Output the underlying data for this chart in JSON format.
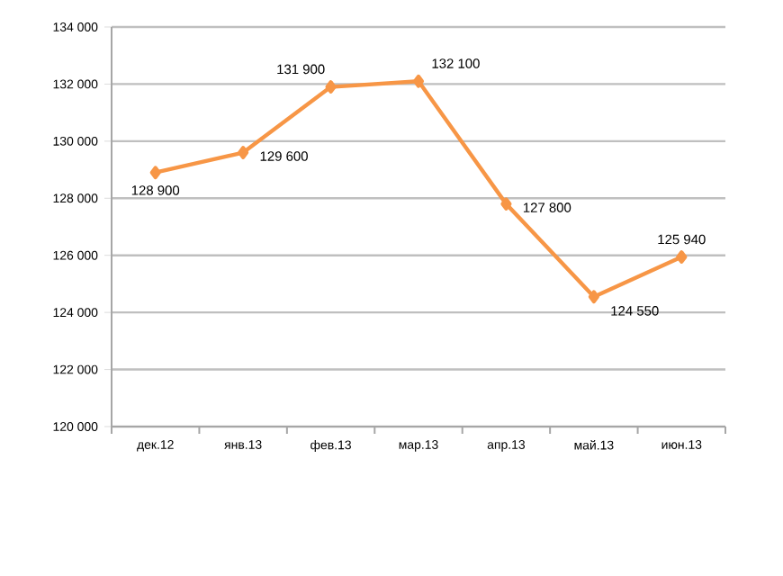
{
  "chart_data": {
    "type": "line",
    "categories": [
      "дек.12",
      "янв.13",
      "фев.13",
      "мар.13",
      "апр.13",
      "май.13",
      "июн.13"
    ],
    "values": [
      128900,
      129600,
      131900,
      132100,
      127800,
      124550,
      125940
    ],
    "value_labels": [
      "128 900",
      "129 600",
      "131 900",
      "132 100",
      "127 800",
      "124 550",
      "125 940"
    ],
    "color": "#f79646",
    "marker": "diamond",
    "line_style": "solid",
    "grid": "y",
    "ylim": [
      120000,
      134000
    ],
    "yticks": [
      {
        "value": 120000,
        "label": "120 000"
      },
      {
        "value": 122000,
        "label": "122 000"
      },
      {
        "value": 124000,
        "label": "124 000"
      },
      {
        "value": 126000,
        "label": "126 000"
      },
      {
        "value": 128000,
        "label": "128 000"
      },
      {
        "value": 130000,
        "label": "130 000"
      },
      {
        "value": 132000,
        "label": "132 000"
      },
      {
        "value": 134000,
        "label": "134 000"
      }
    ]
  }
}
